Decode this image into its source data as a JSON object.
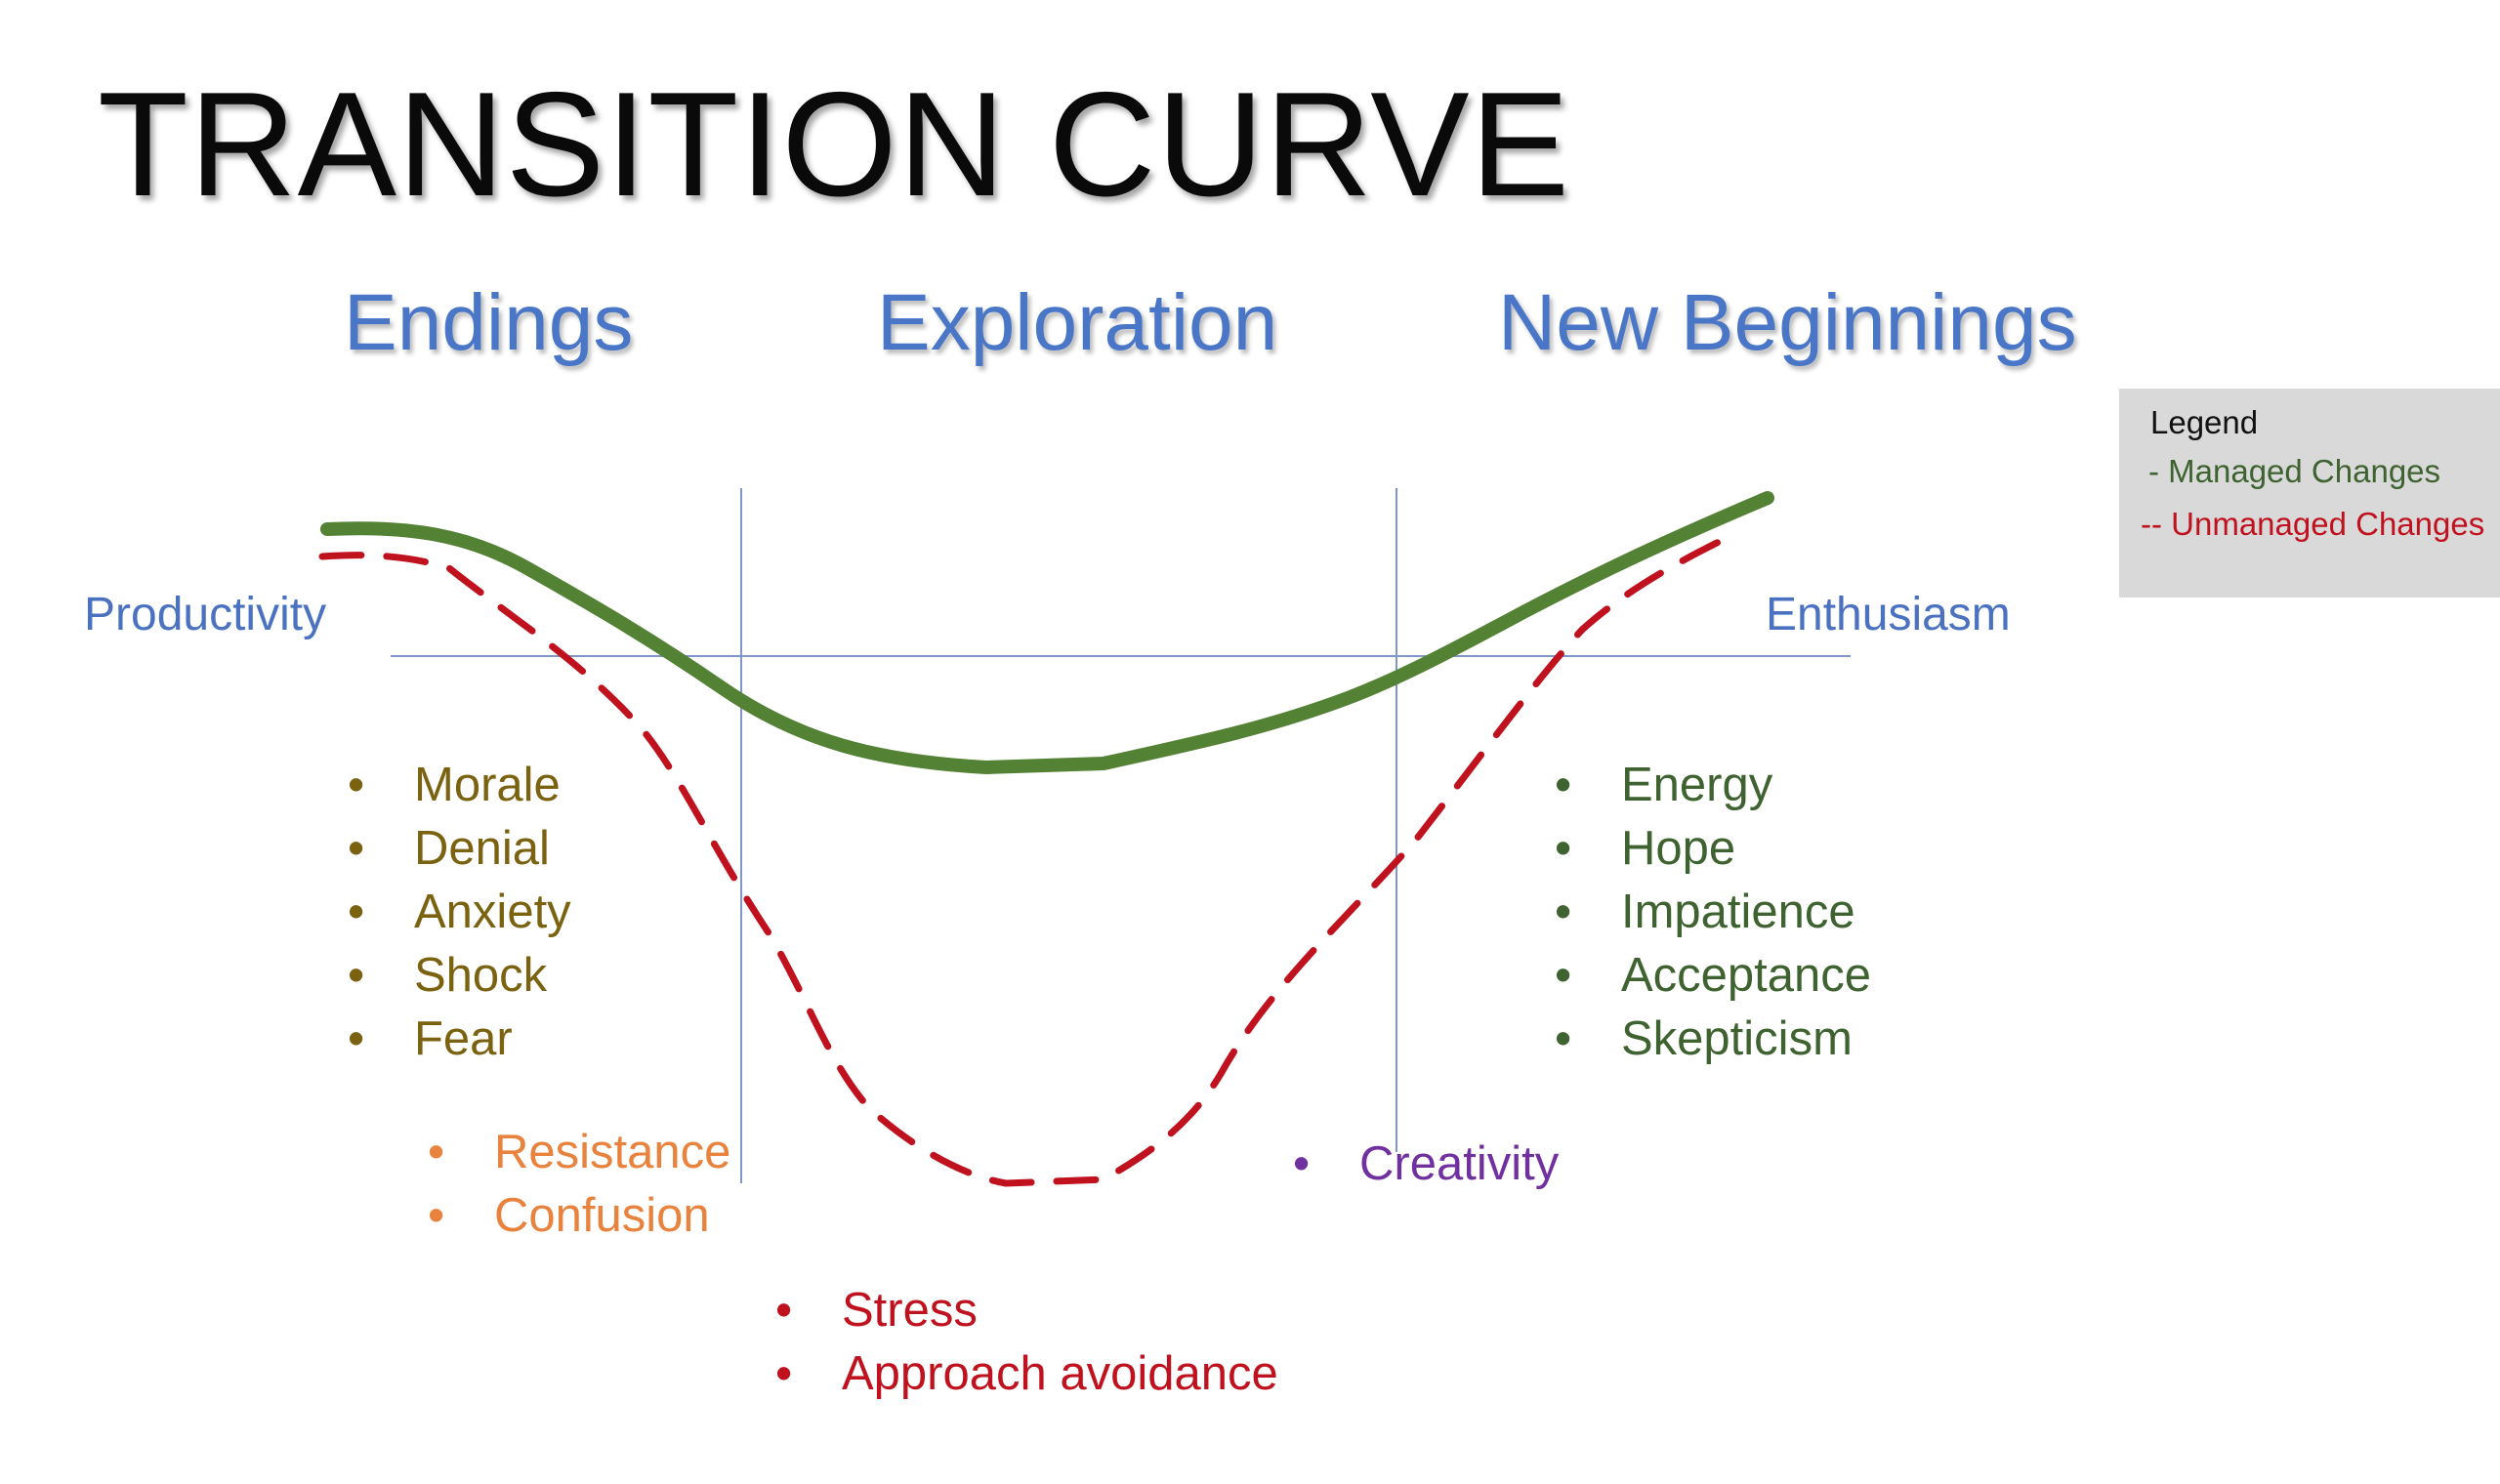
{
  "title": "TRANSITION CURVE",
  "phases": {
    "endings": "Endings",
    "exploration": "Exploration",
    "new_beginnings": "New Beginnings"
  },
  "axis": {
    "left": "Productivity",
    "right": "Enthusiasm"
  },
  "legend": {
    "title": "Legend",
    "managed": "- Managed Changes",
    "unmanaged": "-- Unmanaged Changes"
  },
  "lists": {
    "endings": [
      "Morale",
      "Denial",
      "Anxiety",
      "Shock",
      "Fear"
    ],
    "resistance": [
      "Resistance",
      "Confusion"
    ],
    "stress": [
      "Stress",
      "Approach avoidance"
    ],
    "creativity": [
      "Creativity"
    ],
    "new_beginnings": [
      "Energy",
      "Hope",
      "Impatience",
      "Acceptance",
      "Skepticism"
    ]
  },
  "bullet": "•",
  "colors": {
    "title": "#0a0a0a",
    "phase": "#4a76c8",
    "axis": "#7f97c8",
    "managed_curve": "#548235",
    "unmanaged_curve": "#c0121e",
    "endings_list": "#7a6210",
    "resistance_list": "#e8823c",
    "stress_list": "#c0121e",
    "creativity_list": "#7030a0",
    "new_beginnings_list": "#3f6330",
    "legend_bg": "#d9d9d9"
  }
}
